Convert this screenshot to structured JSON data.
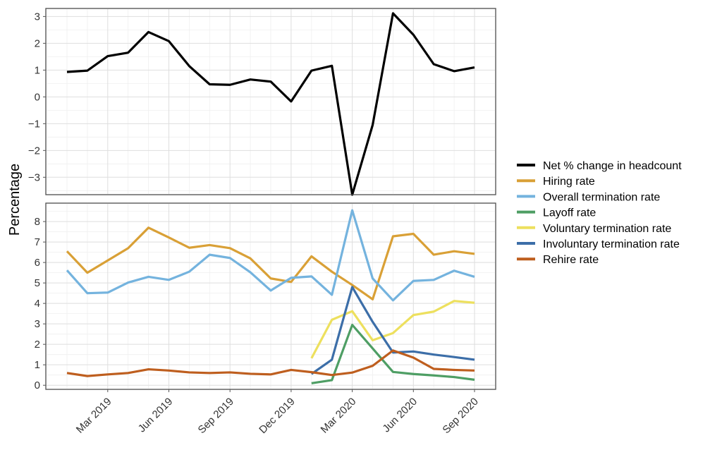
{
  "chart_data": {
    "type": "line",
    "ylabel": "Percentage",
    "x": [
      "2019-01",
      "2019-02",
      "2019-03",
      "2019-04",
      "2019-05",
      "2019-06",
      "2019-07",
      "2019-08",
      "2019-09",
      "2019-10",
      "2019-11",
      "2019-12",
      "2020-01",
      "2020-02",
      "2020-03",
      "2020-04",
      "2020-05",
      "2020-06",
      "2020-07",
      "2020-08",
      "2020-09"
    ],
    "x_ticks": [
      {
        "value": "2019-03",
        "label": "Mar 2019"
      },
      {
        "value": "2019-06",
        "label": "Jun 2019"
      },
      {
        "value": "2019-09",
        "label": "Sep 2019"
      },
      {
        "value": "2019-12",
        "label": "Dec 2019"
      },
      {
        "value": "2020-03",
        "label": "Mar 2020"
      },
      {
        "value": "2020-06",
        "label": "Jun 2020"
      },
      {
        "value": "2020-09",
        "label": "Sep 2020"
      }
    ],
    "grid": true,
    "legend_position": "right",
    "panels": [
      {
        "ylim": [
          -3.65,
          3.3
        ],
        "y_ticks": [
          {
            "value": 3,
            "label": "3"
          },
          {
            "value": 2,
            "label": "2"
          },
          {
            "value": 1,
            "label": "1"
          },
          {
            "value": 0,
            "label": "0"
          },
          {
            "value": -1,
            "label": "−1"
          },
          {
            "value": -2,
            "label": "−2"
          },
          {
            "value": -3,
            "label": "−3"
          }
        ],
        "series": [
          {
            "name": "Net % change in headcount",
            "color": "#000000",
            "values": [
              0.93,
              0.98,
              1.52,
              1.65,
              2.42,
              2.08,
              1.15,
              0.47,
              0.45,
              0.65,
              0.57,
              -0.17,
              0.98,
              1.16,
              -3.65,
              -1.05,
              3.12,
              2.32,
              1.22,
              0.96,
              1.1
            ]
          }
        ]
      },
      {
        "ylim": [
          -0.2,
          8.9
        ],
        "y_ticks": [
          {
            "value": 8,
            "label": "8"
          },
          {
            "value": 7,
            "label": "7"
          },
          {
            "value": 6,
            "label": "6"
          },
          {
            "value": 5,
            "label": "5"
          },
          {
            "value": 4,
            "label": "4"
          },
          {
            "value": 3,
            "label": "3"
          },
          {
            "value": 2,
            "label": "2"
          },
          {
            "value": 1,
            "label": "1"
          },
          {
            "value": 0,
            "label": "0"
          }
        ],
        "series": [
          {
            "name": "Hiring rate",
            "color": "#D9A036",
            "values": [
              6.55,
              5.5,
              6.1,
              6.7,
              7.7,
              7.22,
              6.72,
              6.85,
              6.7,
              6.2,
              5.22,
              5.05,
              6.3,
              5.55,
              4.9,
              4.2,
              7.28,
              7.4,
              6.38,
              6.55,
              6.42
            ]
          },
          {
            "name": "Overall termination rate",
            "color": "#74B3DE",
            "values": [
              5.62,
              4.5,
              4.53,
              5.02,
              5.3,
              5.15,
              5.55,
              6.38,
              6.22,
              5.52,
              4.63,
              5.25,
              5.32,
              4.42,
              8.55,
              5.22,
              4.15,
              5.1,
              5.15,
              5.6,
              5.3
            ]
          },
          {
            "name": "Layoff rate",
            "color": "#4E9E64",
            "values": [
              null,
              null,
              null,
              null,
              null,
              null,
              null,
              null,
              null,
              null,
              null,
              null,
              0.1,
              0.25,
              2.95,
              1.8,
              0.65,
              0.55,
              0.48,
              0.4,
              0.27
            ]
          },
          {
            "name": "Voluntary termination rate",
            "color": "#EDE05E",
            "values": [
              null,
              null,
              null,
              null,
              null,
              null,
              null,
              null,
              null,
              null,
              null,
              null,
              1.32,
              3.2,
              3.62,
              2.2,
              2.55,
              3.43,
              3.6,
              4.12,
              4.03
            ]
          },
          {
            "name": "Involuntary termination rate",
            "color": "#3C6EA8",
            "values": [
              null,
              null,
              null,
              null,
              null,
              null,
              null,
              null,
              null,
              null,
              null,
              null,
              0.55,
              1.25,
              4.8,
              3.1,
              1.6,
              1.65,
              1.5,
              1.38,
              1.25
            ]
          },
          {
            "name": "Rehire rate",
            "color": "#BE5E1E",
            "values": [
              0.6,
              0.45,
              0.53,
              0.6,
              0.78,
              0.72,
              0.63,
              0.6,
              0.63,
              0.56,
              0.53,
              0.75,
              0.64,
              0.5,
              0.62,
              0.95,
              1.7,
              1.35,
              0.8,
              0.75,
              0.72
            ]
          }
        ]
      }
    ],
    "legend": [
      {
        "name": "Net % change in headcount",
        "color": "#000000"
      },
      {
        "name": "Hiring rate",
        "color": "#D9A036"
      },
      {
        "name": "Overall termination rate",
        "color": "#74B3DE"
      },
      {
        "name": "Layoff rate",
        "color": "#4E9E64"
      },
      {
        "name": "Voluntary termination rate",
        "color": "#EDE05E"
      },
      {
        "name": "Involuntary termination rate",
        "color": "#3C6EA8"
      },
      {
        "name": "Rehire rate",
        "color": "#BE5E1E"
      }
    ]
  }
}
